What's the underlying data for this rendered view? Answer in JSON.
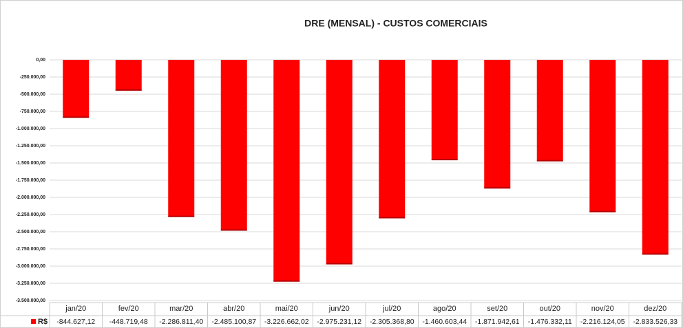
{
  "chart_data": {
    "type": "bar",
    "title": "DRE (MENSAL) - CUSTOS COMERCIAIS",
    "categories": [
      "jan/20",
      "fev/20",
      "mar/20",
      "abr/20",
      "mai/20",
      "jun/20",
      "jul/20",
      "ago/20",
      "set/20",
      "out/20",
      "nov/20",
      "dez/20"
    ],
    "series": [
      {
        "name": "R$",
        "color": "#ff0000",
        "values": [
          -844627.12,
          -448719.48,
          -2286811.4,
          -2485100.87,
          -3226662.02,
          -2975231.12,
          -2305368.8,
          -1460603.44,
          -1871942.61,
          -1476332.11,
          -2216124.05,
          -2833526.33
        ],
        "value_labels": [
          "-844.627,12",
          "-448.719,48",
          "-2.286.811,40",
          "-2.485.100,87",
          "-3.226.662,02",
          "-2.975.231,12",
          "-2.305.368,80",
          "-1.460.603,44",
          "-1.871.942,61",
          "-1.476.332,11",
          "-2.216.124,05",
          "-2.833.526,33"
        ]
      }
    ],
    "ylim": [
      -3500000,
      0
    ],
    "yticks": [
      {
        "value": 0,
        "label": "0,00"
      },
      {
        "value": -250000,
        "label": "-250.000,00"
      },
      {
        "value": -500000,
        "label": "-500.000,00"
      },
      {
        "value": -750000,
        "label": "-750.000,00"
      },
      {
        "value": -1000000,
        "label": "-1.000.000,00"
      },
      {
        "value": -1250000,
        "label": "-1.250.000,00"
      },
      {
        "value": -1500000,
        "label": "-1.500.000,00"
      },
      {
        "value": -1750000,
        "label": "-1.750.000,00"
      },
      {
        "value": -2000000,
        "label": "-2.000.000,00"
      },
      {
        "value": -2250000,
        "label": "-2.250.000,00"
      },
      {
        "value": -2500000,
        "label": "-2.500.000,00"
      },
      {
        "value": -2750000,
        "label": "-2.750.000,00"
      },
      {
        "value": -3000000,
        "label": "-3.000.000,00"
      },
      {
        "value": -3250000,
        "label": "-3.250.000,00"
      },
      {
        "value": -3500000,
        "label": "-3.500.000,00"
      }
    ],
    "grid": true
  }
}
